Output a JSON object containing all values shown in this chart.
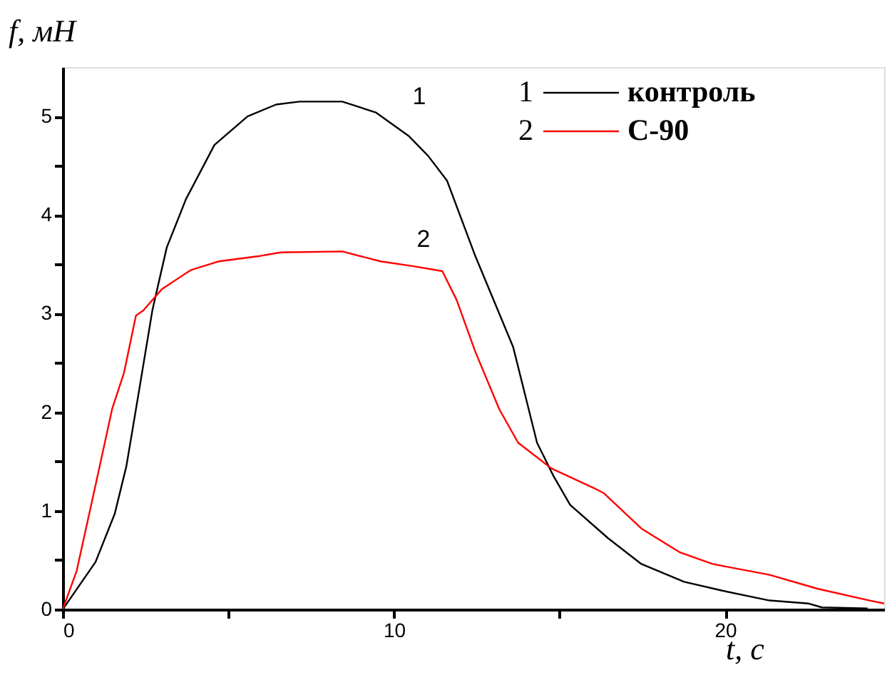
{
  "chart_data": {
    "type": "line",
    "xlabel": "t, с",
    "ylabel": "f, мН",
    "xlim": [
      0,
      24.8
    ],
    "ylim": [
      0,
      5.5
    ],
    "xticks": [
      0,
      {
        "value": 5,
        "label": null
      },
      10,
      {
        "value": 15,
        "label": null
      },
      20
    ],
    "yticks": [
      0,
      {
        "value": 0.5,
        "label": null
      },
      1,
      {
        "value": 1.5,
        "label": null
      },
      2,
      {
        "value": 2.5,
        "label": null
      },
      3,
      {
        "value": 3.5,
        "label": null
      },
      4,
      {
        "value": 4.5,
        "label": null
      },
      5
    ],
    "grid": false,
    "legend": "top right",
    "marker": "none",
    "line_style": "solid",
    "annotations": [
      "1",
      "2"
    ],
    "series": [
      {
        "name": "контроль",
        "color": "#000000",
        "x": [
          0,
          0.99,
          1.57,
          1.92,
          2.28,
          2.71,
          3.14,
          3.72,
          4.58,
          5.58,
          6.44,
          7.15,
          8.44,
          9.45,
          10.45,
          11.03,
          11.6,
          12.46,
          13.6,
          14.32,
          14.82,
          15.32,
          16.47,
          17.47,
          18.76,
          19.91,
          21.34,
          22.5,
          22.92,
          24.3
        ],
        "values": [
          0,
          0.48,
          0.97,
          1.45,
          2.17,
          3.04,
          3.67,
          4.16,
          4.71,
          5.0,
          5.12,
          5.15,
          5.15,
          5.04,
          4.8,
          4.6,
          4.35,
          3.58,
          2.66,
          1.69,
          1.35,
          1.06,
          0.72,
          0.46,
          0.28,
          0.19,
          0.09,
          0.06,
          0.02,
          0.01
        ]
      },
      {
        "name": "С-90",
        "color": "#ff0000",
        "x": [
          0,
          0.42,
          0.99,
          1.49,
          1.85,
          2.21,
          2.43,
          3.0,
          3.86,
          4.72,
          5.87,
          6.58,
          8.44,
          9.59,
          10.59,
          11.46,
          11.89,
          12.46,
          13.18,
          13.75,
          14.75,
          16.04,
          16.33,
          17.47,
          18.62,
          19.62,
          21.34,
          22.78,
          24.36,
          24.8
        ],
        "values": [
          0,
          0.39,
          1.26,
          2.03,
          2.4,
          2.98,
          3.03,
          3.25,
          3.44,
          3.53,
          3.58,
          3.62,
          3.63,
          3.53,
          3.48,
          3.43,
          3.14,
          2.61,
          2.03,
          1.69,
          1.43,
          1.23,
          1.18,
          0.82,
          0.58,
          0.46,
          0.35,
          0.21,
          0.09,
          0.06
        ]
      }
    ]
  }
}
